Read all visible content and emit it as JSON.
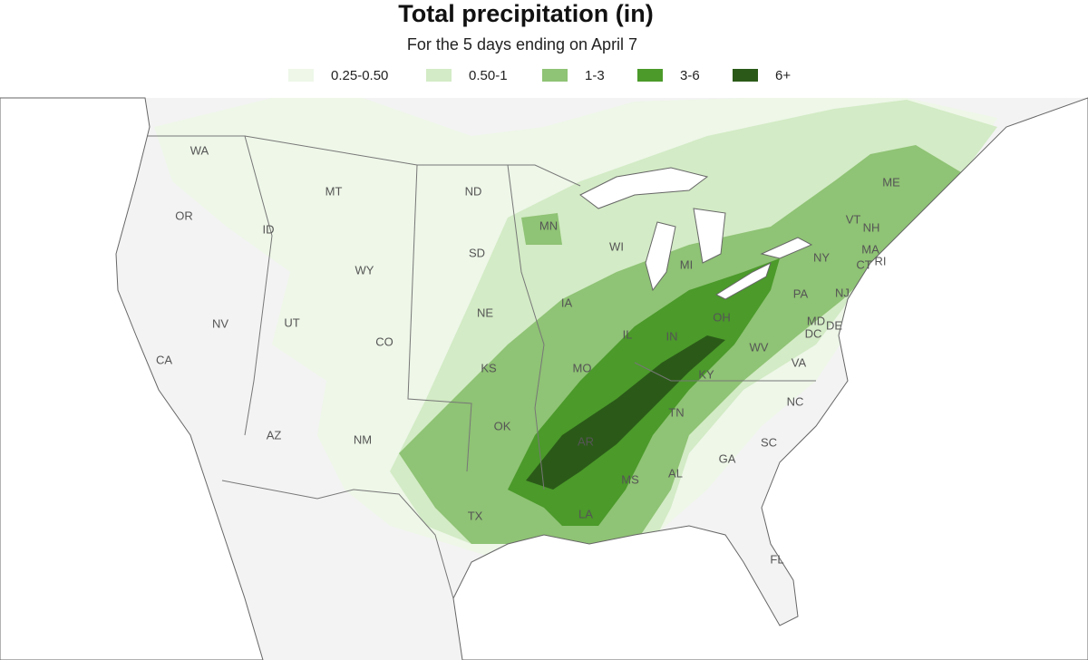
{
  "header": {
    "title": "Total precipitation (in)",
    "subtitle": "For the 5 days ending on April 7"
  },
  "legend": [
    {
      "label": "0.25-0.50",
      "color": "#eef7e8"
    },
    {
      "label": "0.50-1",
      "color": "#d3ebc6"
    },
    {
      "label": "1-3",
      "color": "#8fc375"
    },
    {
      "label": "3-6",
      "color": "#4b9a2a"
    },
    {
      "label": "6+",
      "color": "#2b5a18"
    }
  ],
  "states": [
    "WA",
    "OR",
    "CA",
    "ID",
    "NV",
    "MT",
    "WY",
    "UT",
    "AZ",
    "CO",
    "NM",
    "ND",
    "SD",
    "NE",
    "KS",
    "OK",
    "TX",
    "MN",
    "IA",
    "MO",
    "AR",
    "LA",
    "WI",
    "IL",
    "MS",
    "MI",
    "IN",
    "KY",
    "TN",
    "AL",
    "OH",
    "GA",
    "FL",
    "SC",
    "NC",
    "VA",
    "WV",
    "PA",
    "NY",
    "MD",
    "DE",
    "NJ",
    "CT",
    "RI",
    "MA",
    "VT",
    "NH",
    "ME",
    "DC"
  ]
}
